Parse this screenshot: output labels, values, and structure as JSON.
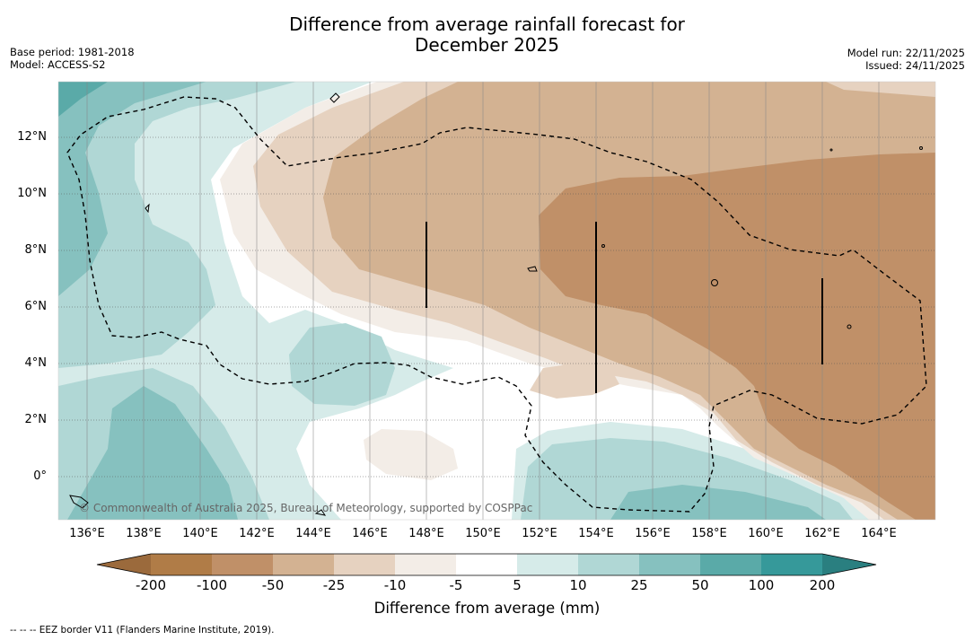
{
  "title_line1": "Difference from average rainfall forecast for",
  "title_line2": "December 2025",
  "base_period": "Base period: 1981-2018",
  "model": "Model: ACCESS-S2",
  "model_run": "Model run: 22/11/2025",
  "issued": "Issued: 24/11/2025",
  "copyright": "© Commonwealth of Australia 2025, Bureau of Meteorology, supported by COSPPac",
  "footnote": "--  --  -- EEZ border V11 (Flanders Marine Institute, 2019).",
  "latitude_labels": [
    "12°N",
    "10°N",
    "8°N",
    "6°N",
    "4°N",
    "2°N",
    "0°"
  ],
  "longitude_labels": [
    "136°E",
    "138°E",
    "140°E",
    "142°E",
    "144°E",
    "146°E",
    "148°E",
    "150°E",
    "152°E",
    "154°E",
    "156°E",
    "158°E",
    "160°E",
    "162°E",
    "164°E"
  ],
  "colorbar": {
    "title": "Difference from average (mm)",
    "tick_labels": [
      "-200",
      "-100",
      "-50",
      "-25",
      "-10",
      "-5",
      "5",
      "10",
      "25",
      "50",
      "100",
      "200"
    ],
    "bins": [
      {
        "range": "< -200",
        "color": "#9b6a3c"
      },
      {
        "range": "-200 to -100",
        "color": "#b07c47"
      },
      {
        "range": "-100 to -50",
        "color": "#c09068"
      },
      {
        "range": "-50 to -25",
        "color": "#d3b292"
      },
      {
        "range": "-25 to -10",
        "color": "#e6d2c0"
      },
      {
        "range": "-10 to -5",
        "color": "#f3ede7"
      },
      {
        "range": "-5 to 5",
        "color": "#ffffff"
      },
      {
        "range": "5 to 10",
        "color": "#d6ebe9"
      },
      {
        "range": "10 to 25",
        "color": "#b0d7d5"
      },
      {
        "range": "25 to 50",
        "color": "#86c1bf"
      },
      {
        "range": "50 to 100",
        "color": "#5aaaa8"
      },
      {
        "range": "100 to 200",
        "color": "#36999a"
      },
      {
        "range": "> 200",
        "color": "#2a7f80"
      }
    ]
  }
}
